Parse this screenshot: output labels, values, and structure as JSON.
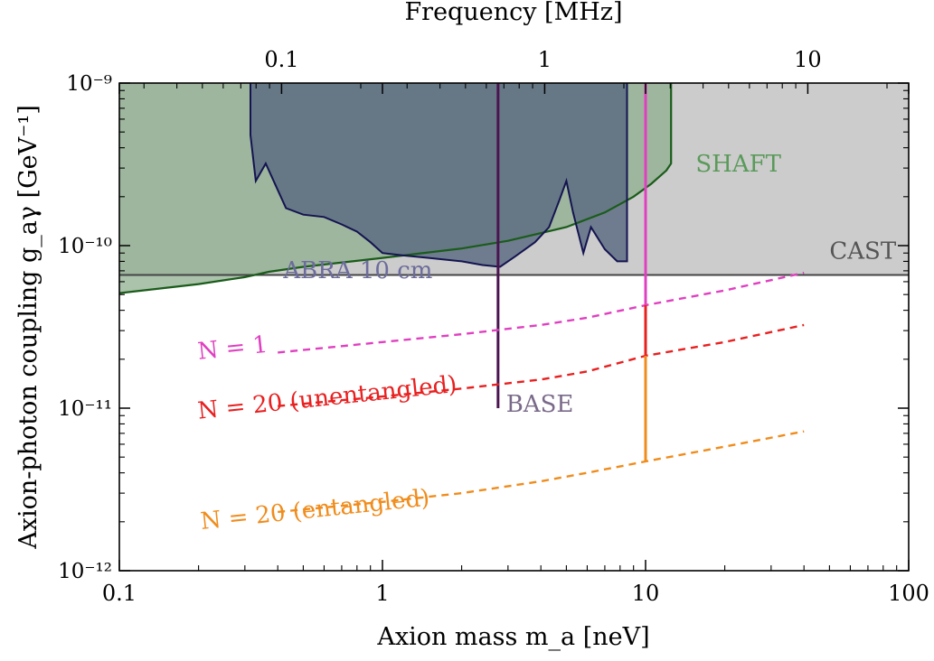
{
  "chart_data": {
    "type": "line",
    "xlabel": "Axion mass m_a [neV]",
    "ylabel": "Axion-photon coupling g_aγ [GeV⁻¹]",
    "top_axis_label": "Frequency [MHz]",
    "x_scale": "log",
    "y_scale": "log",
    "xlim": [
      0.1,
      100
    ],
    "ylim": [
      1e-12,
      1e-09
    ],
    "x_ticks": [
      {
        "value": 0.1,
        "label": "0.1"
      },
      {
        "value": 1,
        "label": "1"
      },
      {
        "value": 10,
        "label": "10"
      },
      {
        "value": 100,
        "label": "100"
      }
    ],
    "y_ticks": [
      {
        "value": 1e-12,
        "label": "10⁻¹²"
      },
      {
        "value": 1e-11,
        "label": "10⁻¹¹"
      },
      {
        "value": 1e-10,
        "label": "10⁻¹⁰"
      },
      {
        "value": 1e-09,
        "label": "10⁻⁹"
      }
    ],
    "top_ticks": [
      {
        "mhz": 0.1,
        "label": "0.1"
      },
      {
        "mhz": 1,
        "label": "1"
      },
      {
        "mhz": 10,
        "label": "10"
      }
    ],
    "mhz_per_nev": 0.2418,
    "grid": false,
    "colors": {
      "cast": "#444444",
      "cast_fill": "#cccccc",
      "shaft": "#1a5c1a",
      "shaft_fill": "#8fae8f",
      "abra": "#141450",
      "abra_fill": "#58687f",
      "base": "#4a1450",
      "n1": "#e040c0",
      "n20u": "#e82020",
      "n20e": "#f08c1c",
      "magenta_line": "#e040c0"
    },
    "regions": [
      {
        "name": "CAST",
        "label": "CAST",
        "label_color": "#555555",
        "label_at": [
          50,
          8.3e-11
        ],
        "limit": 6.6e-11,
        "x_range": [
          0.1,
          100
        ]
      },
      {
        "name": "SHAFT",
        "label": "SHAFT",
        "label_color": "#5a9a5a",
        "label_at": [
          15.5,
          2.85e-10
        ],
        "points": [
          [
            0.1,
            5.1e-11
          ],
          [
            0.2,
            5.8e-11
          ],
          [
            0.3,
            6.4e-11
          ],
          [
            0.37,
            6.9e-11
          ],
          [
            0.5,
            7.4e-11
          ],
          [
            1.0,
            8.4e-11
          ],
          [
            2.0,
            9.6e-11
          ],
          [
            3.0,
            1.07e-10
          ],
          [
            5.0,
            1.3e-10
          ],
          [
            7.0,
            1.6e-10
          ],
          [
            9.0,
            2e-10
          ],
          [
            10.5,
            2.4e-10
          ],
          [
            12.0,
            2.9e-10
          ],
          [
            12.5,
            3.2e-10
          ],
          [
            12.5,
            1e-09
          ]
        ]
      },
      {
        "name": "ABRA 10 cm",
        "label": "ABRA 10 cm",
        "label_color": "#6c6c9c",
        "label_at": [
          0.42,
          6.3e-11
        ],
        "points": [
          [
            0.315,
            1e-09
          ],
          [
            0.315,
            4.8e-10
          ],
          [
            0.33,
            2.5e-10
          ],
          [
            0.36,
            3.2e-10
          ],
          [
            0.4,
            2.2e-10
          ],
          [
            0.43,
            1.7e-10
          ],
          [
            0.5,
            1.55e-10
          ],
          [
            0.6,
            1.5e-10
          ],
          [
            0.7,
            1.35e-10
          ],
          [
            0.8,
            1.22e-10
          ],
          [
            0.9,
            1.05e-10
          ],
          [
            1.0,
            9e-11
          ],
          [
            1.2,
            8.7e-11
          ],
          [
            1.5,
            8.4e-11
          ],
          [
            2.0,
            8e-11
          ],
          [
            2.4,
            7.6e-11
          ],
          [
            2.8,
            7.4e-11
          ],
          [
            3.2,
            8.6e-11
          ],
          [
            3.8,
            1.05e-10
          ],
          [
            4.3,
            1.3e-10
          ],
          [
            4.7,
            1.9e-10
          ],
          [
            5.0,
            2.5e-10
          ],
          [
            5.3,
            1.6e-10
          ],
          [
            5.8,
            9e-11
          ],
          [
            6.2,
            1.3e-10
          ],
          [
            7.0,
            9.5e-11
          ],
          [
            7.8,
            8e-11
          ],
          [
            8.5,
            8e-11
          ],
          [
            8.5,
            1e-09
          ]
        ]
      },
      {
        "name": "BASE",
        "label": "BASE",
        "label_color": "#7a6a8a",
        "label_at": [
          2.95,
          9.5e-12
        ],
        "x": 2.75,
        "y_range": [
          1e-11,
          1e-09
        ]
      }
    ],
    "series": [
      {
        "name": "N = 1",
        "label": "N = 1",
        "label_color": "#e040c0",
        "label_at": [
          0.2,
          2e-11
        ],
        "label_angle": -6,
        "dashed": true,
        "x": [
          0.4,
          1,
          2,
          4,
          6,
          10,
          20,
          40
        ],
        "y": [
          2.2e-11,
          2.55e-11,
          2.85e-11,
          3.25e-11,
          3.6e-11,
          4.3e-11,
          5.3e-11,
          6.8e-11
        ]
      },
      {
        "name": "N = 20 (unentangled)",
        "label": "N = 20 (unentangled)",
        "label_color": "#e82020",
        "label_at": [
          0.2,
          8.6e-12
        ],
        "label_angle": -6,
        "dashed": true,
        "x": [
          0.4,
          1,
          2,
          4,
          6,
          10,
          20,
          40
        ],
        "y": [
          1.03e-11,
          1.18e-11,
          1.32e-11,
          1.5e-11,
          1.68e-11,
          2.1e-11,
          2.55e-11,
          3.25e-11
        ]
      },
      {
        "name": "N = 20 (entangled)",
        "label": "N = 20 (entangled)",
        "label_color": "#f08c1c",
        "label_at": [
          0.205,
          1.8e-12
        ],
        "label_angle": -6,
        "dashed": true,
        "x": [
          0.4,
          1,
          2,
          4,
          6,
          10,
          20,
          40
        ],
        "y": [
          2.3e-12,
          2.65e-12,
          3e-12,
          3.55e-12,
          4e-12,
          4.7e-12,
          5.8e-12,
          7.2e-12
        ]
      }
    ],
    "vertical_lines": [
      {
        "name": "N = 1 cutoff",
        "x": 10,
        "y_range": [
          4.3e-11,
          1e-09
        ],
        "color": "#e040c0"
      },
      {
        "name": "N = 20 (unentangled) cutoff",
        "x": 10,
        "y_range": [
          2.1e-11,
          4.3e-11
        ],
        "color": "#e82020"
      },
      {
        "name": "N = 20 (entangled) cutoff",
        "x": 10,
        "y_range": [
          4.7e-12,
          2.1e-11
        ],
        "color": "#f08c1c"
      }
    ]
  }
}
